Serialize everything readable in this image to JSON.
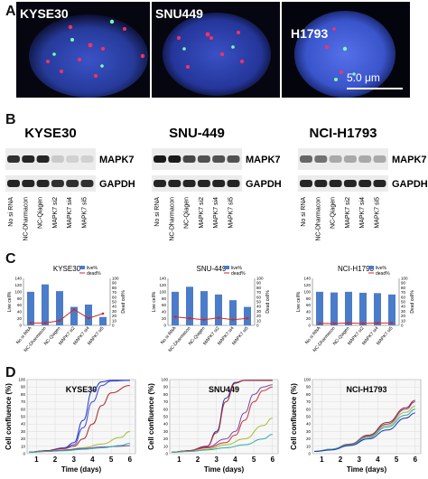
{
  "figure": {
    "panel_letters": [
      "A",
      "B",
      "C",
      "D"
    ]
  },
  "panel_a": {
    "images": [
      {
        "label": "KYSE30"
      },
      {
        "label": "SNU449"
      },
      {
        "label": "H1793"
      }
    ],
    "scale_bar_label": "5.0 μm"
  },
  "panel_b": {
    "lane_labels": [
      "No si RNA",
      "NC-Dharmacon",
      "NC-Qiagen",
      "MAPK7 si2",
      "MAPK7 si4",
      "MAPK7 si5"
    ],
    "blots": [
      {
        "title": "KYSE30",
        "band_top": "MAPK7",
        "band_bottom": "GAPDH",
        "mapk7_intensity": [
          0.85,
          0.9,
          0.9,
          0.15,
          0.12,
          0.12
        ],
        "gapdh_intensity": [
          0.9,
          0.9,
          0.9,
          0.85,
          0.85,
          0.85
        ]
      },
      {
        "title": "SNU-449",
        "band_top": "MAPK7",
        "band_bottom": "GAPDH",
        "mapk7_intensity": [
          0.95,
          0.95,
          0.75,
          0.7,
          0.7,
          0.7
        ],
        "gapdh_intensity": [
          0.9,
          0.9,
          0.9,
          0.9,
          0.9,
          0.9
        ]
      },
      {
        "title": "NCI-H1793",
        "band_top": "MAPK7",
        "band_bottom": "GAPDH",
        "mapk7_intensity": [
          0.6,
          0.55,
          0.3,
          0.3,
          0.3,
          0.3
        ],
        "gapdh_intensity": [
          0.9,
          0.9,
          0.9,
          0.9,
          0.9,
          0.9
        ]
      }
    ]
  },
  "chart_data": [
    {
      "type": "bar",
      "title": "KYSE30",
      "categories": [
        "No si RNA",
        "NC-Dharmacon",
        "NC-Qiagen",
        "MAPK7 si2",
        "MAPK7 si4",
        "MAPK7 si5"
      ],
      "ylabel": "Live cell%",
      "y2label": "Dead cell%",
      "ylim": [
        0,
        140
      ],
      "y2lim": [
        0,
        100
      ],
      "yticks": [
        0,
        20,
        40,
        60,
        80,
        100,
        120,
        140
      ],
      "y2ticks": [
        0,
        10,
        20,
        30,
        40,
        50,
        60,
        70,
        80,
        90,
        100
      ],
      "legend": [
        "live%",
        "dead%"
      ],
      "series": [
        {
          "name": "live%",
          "values": [
            100,
            122,
            102,
            55,
            62,
            25
          ]
        },
        {
          "name": "dead%",
          "values": [
            5,
            5,
            10,
            34,
            15,
            25
          ]
        }
      ]
    },
    {
      "type": "bar",
      "title": "SNU-449",
      "categories": [
        "No si RNA",
        "NC-Dharmacon",
        "NC-Qiagen",
        "MAPK7 si2",
        "MAPK7 si4",
        "MAPK7 si5"
      ],
      "ylabel": "Live cell%",
      "y2label": "Dead cell%",
      "ylim": [
        0,
        140
      ],
      "y2lim": [
        0,
        100
      ],
      "yticks": [
        0,
        20,
        40,
        60,
        80,
        100,
        120,
        140
      ],
      "y2ticks": [
        0,
        10,
        20,
        30,
        40,
        50,
        60,
        70,
        80,
        90,
        100
      ],
      "legend": [
        "live%",
        "dead%"
      ],
      "series": [
        {
          "name": "live%",
          "values": [
            100,
            115,
            102,
            92,
            75,
            55
          ]
        },
        {
          "name": "dead%",
          "values": [
            18,
            15,
            12,
            16,
            12,
            15
          ]
        }
      ]
    },
    {
      "type": "bar",
      "title": "NCI-H1793",
      "categories": [
        "No si RNA",
        "NC-Dharmacon",
        "NC-Qiagen",
        "MAPK7 si2",
        "MAPK7 si4",
        "MAPK7 si5"
      ],
      "ylabel": "Live cell%",
      "y2label": "Dead cell%",
      "ylim": [
        0,
        140
      ],
      "y2lim": [
        0,
        100
      ],
      "yticks": [
        0,
        20,
        40,
        60,
        80,
        100,
        120,
        140
      ],
      "y2ticks": [
        0,
        10,
        20,
        30,
        40,
        50,
        60,
        70,
        80,
        90,
        100
      ],
      "legend": [
        "live%",
        "dead%"
      ],
      "series": [
        {
          "name": "live%",
          "values": [
            100,
            98,
            100,
            97,
            96,
            92
          ]
        },
        {
          "name": "dead%",
          "values": [
            4,
            4,
            5,
            4,
            5,
            5
          ]
        }
      ]
    },
    {
      "type": "line",
      "title": "KYSE30",
      "xlabel": "Time (days)",
      "ylabel": "Cell confluence (%)",
      "xlim": [
        0.5,
        6.3
      ],
      "ylim": [
        0,
        100
      ],
      "xticks": [
        1,
        2,
        3,
        4,
        5,
        6
      ],
      "yticks": [
        0,
        10,
        20,
        30,
        40,
        50,
        60,
        70,
        80,
        90,
        100
      ],
      "series": [
        {
          "color": "#2233bb",
          "x": [
            0.6,
            1.5,
            2.5,
            3.0,
            3.5,
            4.0,
            4.5,
            5.0,
            6.0
          ],
          "y": [
            2,
            4,
            8,
            15,
            45,
            85,
            97,
            99,
            99
          ]
        },
        {
          "color": "#3344dd",
          "x": [
            0.6,
            1.5,
            2.5,
            3.0,
            3.5,
            4.0,
            4.5,
            5.0,
            6.0
          ],
          "y": [
            2,
            4,
            8,
            12,
            35,
            70,
            92,
            98,
            99
          ]
        },
        {
          "color": "#aa2222",
          "x": [
            0.6,
            1.5,
            2.5,
            3.0,
            3.5,
            4.0,
            4.5,
            5.0,
            6.0
          ],
          "y": [
            2,
            4,
            7,
            10,
            20,
            40,
            65,
            82,
            92
          ]
        },
        {
          "color": "#aabb33",
          "x": [
            0.6,
            1.5,
            2.5,
            3.5,
            4.5,
            5.5,
            6.0
          ],
          "y": [
            2,
            3,
            5,
            8,
            13,
            22,
            30
          ]
        },
        {
          "color": "#7744aa",
          "x": [
            0.6,
            1.5,
            2.5,
            3.5,
            4.5,
            5.5,
            6.0
          ],
          "y": [
            2,
            3,
            5,
            7,
            9,
            10,
            11
          ]
        },
        {
          "color": "#33aaaa",
          "x": [
            0.6,
            1.5,
            2.5,
            3.5,
            4.5,
            5.5,
            6.0
          ],
          "y": [
            2,
            3,
            4,
            6,
            8,
            11,
            14
          ]
        }
      ]
    },
    {
      "type": "line",
      "title": "SNU449",
      "xlabel": "Time (days)",
      "ylabel": "Cell confluence (%)",
      "xlim": [
        0.5,
        6.3
      ],
      "ylim": [
        0,
        100
      ],
      "xticks": [
        1,
        2,
        3,
        4,
        5,
        6
      ],
      "yticks": [
        0,
        10,
        20,
        30,
        40,
        50,
        60,
        70,
        80,
        90,
        100
      ],
      "series": [
        {
          "color": "#2233bb",
          "x": [
            0.6,
            1.5,
            2.5,
            3.0,
            3.5,
            4.0,
            4.5,
            5.0,
            6.0
          ],
          "y": [
            2,
            4,
            10,
            30,
            75,
            96,
            99,
            99,
            99
          ]
        },
        {
          "color": "#aa2222",
          "x": [
            0.6,
            1.5,
            2.5,
            3.0,
            3.5,
            4.0,
            4.5,
            5.0,
            6.0
          ],
          "y": [
            2,
            4,
            10,
            28,
            70,
            95,
            99,
            99,
            99
          ]
        },
        {
          "color": "#7744aa",
          "x": [
            0.6,
            1.5,
            2.5,
            3.5,
            4.0,
            4.5,
            5.0,
            5.5,
            6.0
          ],
          "y": [
            2,
            4,
            9,
            20,
            30,
            55,
            80,
            90,
            93
          ]
        },
        {
          "color": "#cc3333",
          "x": [
            0.6,
            1.5,
            2.5,
            3.5,
            4.0,
            4.5,
            5.0,
            5.5,
            6.0
          ],
          "y": [
            2,
            4,
            8,
            15,
            25,
            45,
            70,
            85,
            90
          ]
        },
        {
          "color": "#aabb33",
          "x": [
            0.6,
            1.5,
            2.5,
            3.5,
            4.5,
            5.5,
            6.0
          ],
          "y": [
            2,
            3,
            6,
            12,
            20,
            38,
            48
          ]
        },
        {
          "color": "#33aaaa",
          "x": [
            0.6,
            1.5,
            2.5,
            3.5,
            4.5,
            5.5,
            6.0
          ],
          "y": [
            2,
            3,
            5,
            8,
            12,
            20,
            26
          ]
        }
      ]
    },
    {
      "type": "line",
      "title": "NCI-H1793",
      "xlabel": "Time (days)",
      "ylabel": "Cell confluence (%)",
      "xlim": [
        0.5,
        6.3
      ],
      "ylim": [
        0,
        100
      ],
      "xticks": [
        1,
        2,
        3,
        4,
        5,
        6
      ],
      "yticks": [
        0,
        10,
        20,
        30,
        40,
        50,
        60,
        70,
        80,
        90,
        100
      ],
      "series": [
        {
          "color": "#aa2222",
          "x": [
            0.6,
            1.5,
            2.5,
            3.5,
            4.5,
            5.5,
            6.0
          ],
          "y": [
            3,
            6,
            13,
            25,
            42,
            62,
            72
          ]
        },
        {
          "color": "#7744aa",
          "x": [
            0.6,
            1.5,
            2.5,
            3.5,
            4.5,
            5.5,
            6.0
          ],
          "y": [
            3,
            6,
            12,
            24,
            40,
            60,
            70
          ]
        },
        {
          "color": "#aabb33",
          "x": [
            0.6,
            1.5,
            2.5,
            3.5,
            4.5,
            5.5,
            6.0
          ],
          "y": [
            3,
            6,
            12,
            23,
            38,
            56,
            64
          ]
        },
        {
          "color": "#33aaaa",
          "x": [
            0.6,
            1.5,
            2.5,
            3.5,
            4.5,
            5.5,
            6.0
          ],
          "y": [
            3,
            6,
            12,
            22,
            36,
            52,
            60
          ]
        },
        {
          "color": "#2233bb",
          "x": [
            0.6,
            1.5,
            2.5,
            3.5,
            4.5,
            5.5,
            6.0
          ],
          "y": [
            3,
            5,
            11,
            20,
            32,
            48,
            55
          ]
        }
      ]
    }
  ]
}
